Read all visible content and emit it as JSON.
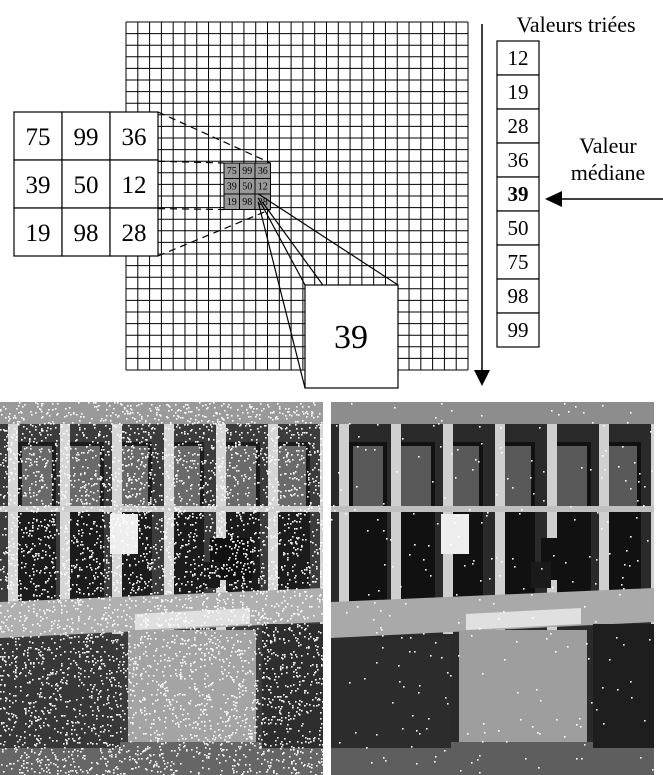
{
  "sorted_title": "Valeurs triées",
  "median_label_line1": "Valeur",
  "median_label_line2": "médiane",
  "window_values": [
    [
      "75",
      "99",
      "36"
    ],
    [
      "39",
      "50",
      "12"
    ],
    [
      "19",
      "98",
      "28"
    ]
  ],
  "sorted_values": [
    "12",
    "19",
    "28",
    "36",
    "39",
    "50",
    "75",
    "98",
    "99"
  ],
  "median_index": 4,
  "output_value": "39",
  "colors": {
    "highlight_cell": "#999999",
    "line": "#000000",
    "background": "#ffffff"
  }
}
